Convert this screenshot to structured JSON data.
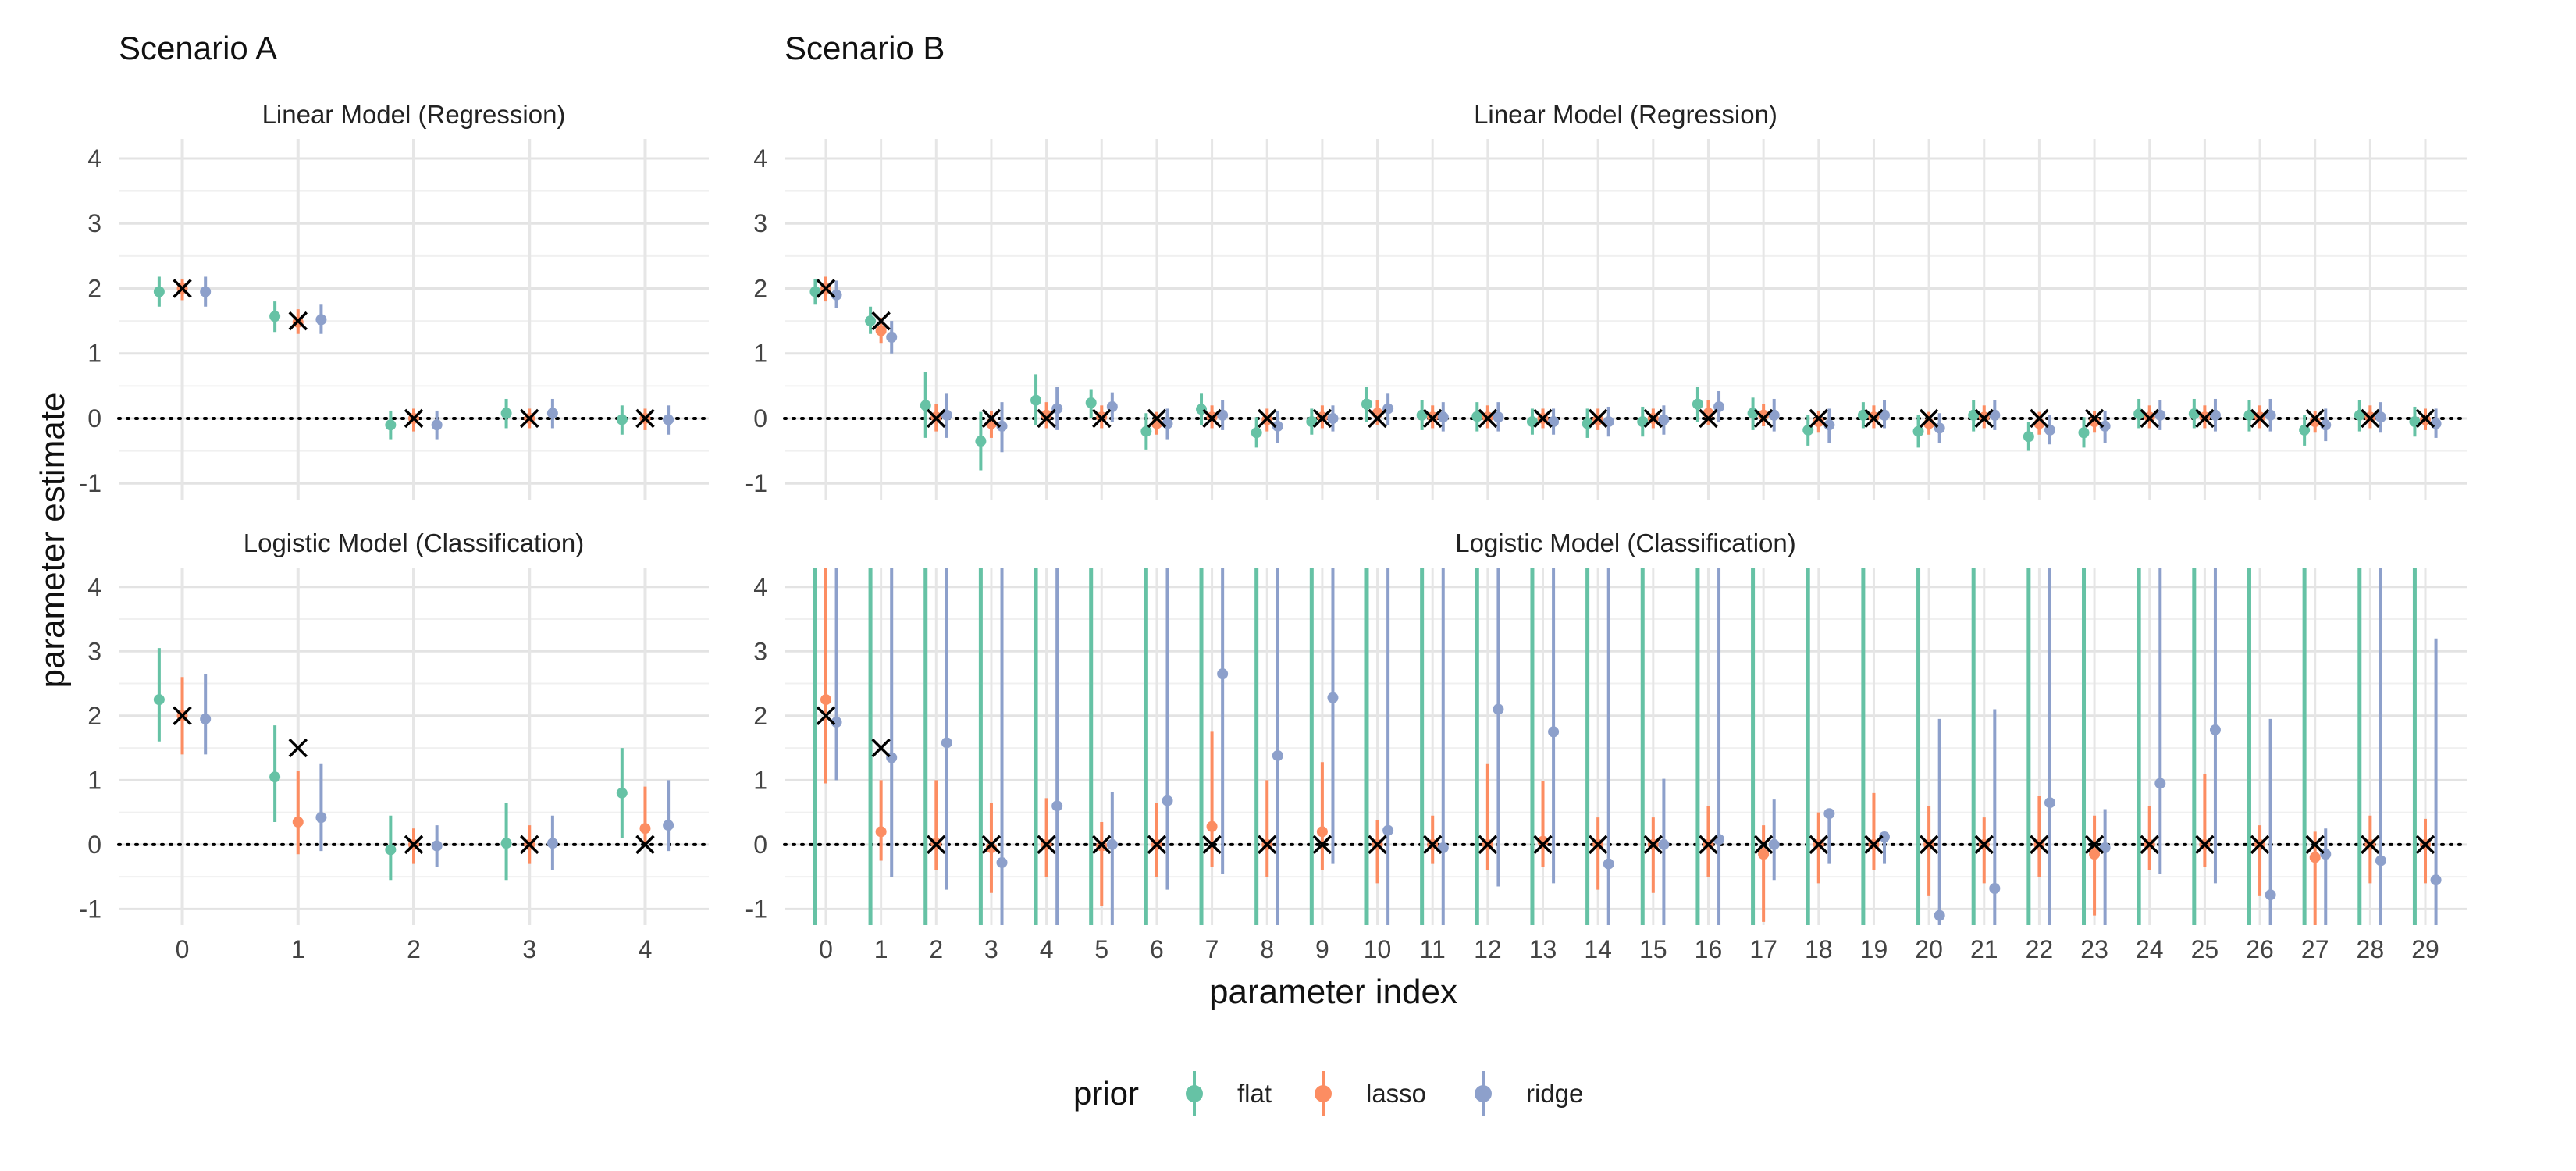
{
  "chart_data": {
    "type": "scatter",
    "description": "Point estimates with interval bars per parameter index, 4 facets; black X marks the true parameter value; dotted line at zero",
    "ylabel": "parameter estimate",
    "xlabel": "parameter index",
    "ylim": [
      -1.25,
      4.3
    ],
    "yticks": [
      -1,
      0,
      1,
      2,
      3,
      4
    ],
    "grid": true,
    "legend": {
      "title": "prior",
      "placement": "bottom",
      "entries": [
        "flat",
        "lasso",
        "ridge"
      ]
    },
    "colors": {
      "flat": "#66c2a5",
      "lasso": "#fc8d62",
      "ridge": "#8da0cb",
      "truth": "#000000",
      "zero_line": "#000000"
    },
    "scenarios": [
      {
        "title": "Scenario A"
      },
      {
        "title": "Scenario B"
      }
    ],
    "panels": [
      {
        "scenario": "Scenario A",
        "title": "Linear Model (Regression)",
        "x": [
          0,
          1,
          2,
          3,
          4
        ],
        "truth": [
          2,
          1.5,
          0,
          0,
          0
        ],
        "series": [
          {
            "name": "flat",
            "est": [
              1.95,
              1.57,
              -0.1,
              0.08,
              -0.02
            ],
            "lo": [
              1.72,
              1.33,
              -0.32,
              -0.15,
              -0.25
            ],
            "hi": [
              2.18,
              1.8,
              0.12,
              0.3,
              0.2
            ]
          },
          {
            "name": "lasso",
            "est": [
              2.0,
              1.48,
              0.0,
              0.0,
              0.0
            ],
            "lo": [
              1.82,
              1.3,
              -0.2,
              -0.15,
              -0.18
            ],
            "hi": [
              2.15,
              1.68,
              0.15,
              0.15,
              0.15
            ]
          },
          {
            "name": "ridge",
            "est": [
              1.95,
              1.52,
              -0.1,
              0.08,
              -0.02
            ],
            "lo": [
              1.72,
              1.3,
              -0.32,
              -0.15,
              -0.25
            ],
            "hi": [
              2.18,
              1.75,
              0.12,
              0.3,
              0.2
            ]
          }
        ]
      },
      {
        "scenario": "Scenario B",
        "title": "Linear Model (Regression)",
        "x": [
          0,
          1,
          2,
          3,
          4,
          5,
          6,
          7,
          8,
          9,
          10,
          11,
          12,
          13,
          14,
          15,
          16,
          17,
          18,
          19,
          20,
          21,
          22,
          23,
          24,
          25,
          26,
          27,
          28,
          29
        ],
        "truth": [
          2,
          1.5,
          0,
          0,
          0,
          0,
          0,
          0,
          0,
          0,
          0,
          0,
          0,
          0,
          0,
          0,
          0,
          0,
          0,
          0,
          0,
          0,
          0,
          0,
          0,
          0,
          0,
          0,
          0,
          0
        ],
        "series": [
          {
            "name": "flat",
            "est": [
              1.95,
              1.5,
              0.2,
              -0.35,
              0.28,
              0.24,
              -0.2,
              0.14,
              -0.22,
              -0.05,
              0.22,
              0.05,
              0.03,
              -0.05,
              -0.08,
              -0.05,
              0.22,
              0.08,
              -0.18,
              0.05,
              -0.2,
              0.05,
              -0.28,
              -0.22,
              0.07,
              0.07,
              0.05,
              -0.18,
              0.05,
              -0.05
            ],
            "lo": [
              1.75,
              1.3,
              -0.3,
              -0.8,
              -0.1,
              0.0,
              -0.48,
              -0.1,
              -0.45,
              -0.25,
              -0.05,
              -0.18,
              -0.2,
              -0.25,
              -0.3,
              -0.28,
              -0.05,
              -0.18,
              -0.42,
              -0.15,
              -0.45,
              -0.2,
              -0.5,
              -0.45,
              -0.15,
              -0.15,
              -0.2,
              -0.42,
              -0.2,
              -0.28
            ],
            "hi": [
              2.15,
              1.72,
              0.72,
              0.1,
              0.68,
              0.45,
              0.08,
              0.38,
              0.02,
              0.15,
              0.48,
              0.28,
              0.25,
              0.15,
              0.15,
              0.18,
              0.48,
              0.32,
              0.05,
              0.25,
              0.05,
              0.28,
              -0.05,
              0.02,
              0.3,
              0.3,
              0.28,
              0.05,
              0.28,
              0.18
            ]
          },
          {
            "name": "lasso",
            "est": [
              2.0,
              1.35,
              0.02,
              -0.08,
              0.05,
              0.02,
              -0.08,
              0.02,
              -0.02,
              0.02,
              0.08,
              0.02,
              0.02,
              0.0,
              -0.02,
              0.0,
              0.08,
              0.05,
              -0.05,
              0.02,
              -0.08,
              0.02,
              -0.08,
              -0.05,
              0.02,
              0.02,
              0.02,
              -0.05,
              0.02,
              -0.02
            ],
            "lo": [
              1.8,
              1.15,
              -0.2,
              -0.3,
              -0.15,
              -0.15,
              -0.25,
              -0.15,
              -0.2,
              -0.15,
              -0.1,
              -0.15,
              -0.15,
              -0.15,
              -0.18,
              -0.15,
              -0.1,
              -0.12,
              -0.22,
              -0.15,
              -0.25,
              -0.15,
              -0.25,
              -0.22,
              -0.15,
              -0.15,
              -0.15,
              -0.22,
              -0.15,
              -0.18
            ],
            "hi": [
              2.18,
              1.55,
              0.22,
              0.12,
              0.25,
              0.2,
              0.1,
              0.2,
              0.15,
              0.2,
              0.28,
              0.2,
              0.2,
              0.15,
              0.15,
              0.15,
              0.28,
              0.22,
              0.12,
              0.2,
              0.1,
              0.2,
              0.1,
              0.12,
              0.2,
              0.2,
              0.2,
              0.12,
              0.2,
              0.15
            ]
          },
          {
            "name": "ridge",
            "est": [
              1.9,
              1.25,
              0.05,
              -0.12,
              0.15,
              0.18,
              -0.08,
              0.05,
              -0.12,
              0.0,
              0.15,
              0.02,
              0.02,
              -0.05,
              -0.05,
              -0.02,
              0.18,
              0.05,
              -0.1,
              0.05,
              -0.15,
              0.05,
              -0.18,
              -0.12,
              0.05,
              0.05,
              0.05,
              -0.1,
              0.02,
              -0.08
            ],
            "lo": [
              1.7,
              1.0,
              -0.3,
              -0.52,
              -0.18,
              -0.05,
              -0.32,
              -0.18,
              -0.38,
              -0.2,
              -0.1,
              -0.2,
              -0.2,
              -0.25,
              -0.28,
              -0.25,
              -0.05,
              -0.2,
              -0.38,
              -0.15,
              -0.38,
              -0.18,
              -0.4,
              -0.38,
              -0.18,
              -0.2,
              -0.2,
              -0.35,
              -0.22,
              -0.3
            ],
            "hi": [
              2.12,
              1.5,
              0.38,
              0.25,
              0.48,
              0.4,
              0.15,
              0.28,
              0.12,
              0.2,
              0.38,
              0.25,
              0.25,
              0.15,
              0.18,
              0.2,
              0.42,
              0.3,
              0.15,
              0.28,
              0.08,
              0.28,
              0.05,
              0.12,
              0.28,
              0.3,
              0.3,
              0.15,
              0.25,
              0.15
            ]
          }
        ]
      },
      {
        "scenario": "Scenario A",
        "title": "Logistic Model (Classification)",
        "x": [
          0,
          1,
          2,
          3,
          4
        ],
        "truth": [
          2,
          1.5,
          0,
          0,
          0
        ],
        "series": [
          {
            "name": "flat",
            "est": [
              2.25,
              1.05,
              -0.08,
              0.02,
              0.8
            ],
            "lo": [
              1.6,
              0.35,
              -0.55,
              -0.55,
              0.1
            ],
            "hi": [
              3.05,
              1.85,
              0.45,
              0.65,
              1.5
            ]
          },
          {
            "name": "lasso",
            "est": [
              2.0,
              0.35,
              0.0,
              0.0,
              0.25
            ],
            "lo": [
              1.4,
              -0.15,
              -0.3,
              -0.3,
              0.0
            ],
            "hi": [
              2.6,
              1.15,
              0.25,
              0.3,
              0.9
            ]
          },
          {
            "name": "ridge",
            "est": [
              1.95,
              0.42,
              -0.02,
              0.02,
              0.3
            ],
            "lo": [
              1.4,
              -0.1,
              -0.35,
              -0.4,
              -0.1
            ],
            "hi": [
              2.65,
              1.25,
              0.3,
              0.45,
              1.0
            ]
          }
        ]
      },
      {
        "scenario": "Scenario B",
        "title": "Logistic Model (Classification)",
        "x": [
          0,
          1,
          2,
          3,
          4,
          5,
          6,
          7,
          8,
          9,
          10,
          11,
          12,
          13,
          14,
          15,
          16,
          17,
          18,
          19,
          20,
          21,
          22,
          23,
          24,
          25,
          26,
          27,
          28,
          29
        ],
        "truth": [
          2,
          1.5,
          0,
          0,
          0,
          0,
          0,
          0,
          0,
          0,
          0,
          0,
          0,
          0,
          0,
          0,
          0,
          0,
          0,
          0,
          0,
          0,
          0,
          0,
          0,
          0,
          0,
          0,
          0,
          0
        ],
        "series": [
          {
            "name": "flat",
            "est": [
              null,
              null,
              null,
              null,
              null,
              null,
              null,
              null,
              null,
              null,
              null,
              null,
              null,
              null,
              null,
              null,
              null,
              null,
              null,
              null,
              null,
              null,
              null,
              null,
              null,
              null,
              null,
              null,
              null,
              null
            ],
            "lo": [
              -1.25,
              -1.25,
              -1.25,
              -1.25,
              -1.25,
              -1.25,
              -1.25,
              -1.25,
              -1.25,
              -1.25,
              -1.25,
              -1.25,
              -1.25,
              -1.25,
              -1.25,
              -1.25,
              -1.25,
              -1.25,
              -1.25,
              -1.25,
              -1.25,
              -1.25,
              -1.25,
              -1.25,
              -1.25,
              -1.25,
              -1.25,
              -1.25,
              -1.25,
              -1.25
            ],
            "hi": [
              4.3,
              4.3,
              4.3,
              4.3,
              4.3,
              4.3,
              4.3,
              4.3,
              4.3,
              4.3,
              4.3,
              4.3,
              4.3,
              4.3,
              4.3,
              4.3,
              4.3,
              4.3,
              4.3,
              4.3,
              4.3,
              4.3,
              4.3,
              4.3,
              4.3,
              4.3,
              4.3,
              4.3,
              4.3,
              4.3
            ]
          },
          {
            "name": "lasso",
            "est": [
              2.25,
              0.2,
              0.02,
              -0.05,
              0.0,
              -0.02,
              0.0,
              0.28,
              0.0,
              0.2,
              0.0,
              0.0,
              0.0,
              0.05,
              0.0,
              0.0,
              0.0,
              -0.15,
              0.0,
              0.0,
              0.0,
              0.0,
              0.0,
              -0.15,
              0.0,
              0.0,
              0.0,
              -0.2,
              0.0,
              0.0
            ],
            "lo": [
              0.95,
              -0.25,
              -0.4,
              -0.75,
              -0.5,
              -0.95,
              -0.5,
              -0.35,
              -0.5,
              -0.4,
              -0.6,
              -0.3,
              -0.4,
              -0.35,
              -0.7,
              -0.75,
              -0.5,
              -1.2,
              -0.6,
              -0.4,
              -0.8,
              -0.6,
              -0.5,
              -1.1,
              -0.4,
              -0.35,
              -0.8,
              -1.25,
              -0.6,
              -0.6
            ],
            "hi": [
              4.3,
              1.0,
              1.0,
              0.65,
              0.72,
              0.35,
              0.65,
              1.75,
              1.0,
              1.28,
              0.38,
              0.45,
              1.25,
              0.98,
              0.42,
              0.42,
              0.6,
              0.3,
              0.5,
              0.8,
              0.6,
              0.42,
              0.75,
              0.45,
              0.6,
              1.1,
              0.3,
              0.2,
              0.45,
              0.4
            ]
          },
          {
            "name": "ridge",
            "est": [
              1.9,
              1.35,
              1.58,
              -0.28,
              0.6,
              0.0,
              0.68,
              2.65,
              1.38,
              2.28,
              0.22,
              -0.05,
              2.1,
              1.75,
              -0.3,
              0.0,
              0.08,
              0.0,
              0.48,
              0.12,
              -1.1,
              -0.68,
              0.65,
              -0.05,
              0.95,
              1.78,
              -0.78,
              -0.15,
              -0.25,
              -0.55
            ],
            "lo": [
              1.0,
              -0.5,
              -0.7,
              -1.25,
              -1.25,
              -1.25,
              -0.7,
              -0.45,
              -1.25,
              -0.3,
              -1.25,
              -1.25,
              -0.65,
              -0.6,
              -1.25,
              -1.25,
              -1.25,
              -0.55,
              -0.3,
              -0.3,
              -1.25,
              -1.25,
              -1.25,
              -1.25,
              -0.45,
              -0.6,
              -1.25,
              -1.25,
              -1.25,
              -1.25
            ],
            "hi": [
              4.3,
              4.3,
              4.3,
              4.3,
              4.3,
              0.82,
              4.3,
              4.3,
              4.3,
              4.3,
              4.3,
              4.3,
              4.3,
              4.3,
              4.3,
              1.02,
              4.3,
              0.7,
              0.55,
              0.18,
              1.95,
              2.1,
              4.3,
              0.55,
              4.3,
              4.3,
              1.95,
              0.25,
              4.3,
              3.2
            ]
          }
        ]
      }
    ]
  }
}
